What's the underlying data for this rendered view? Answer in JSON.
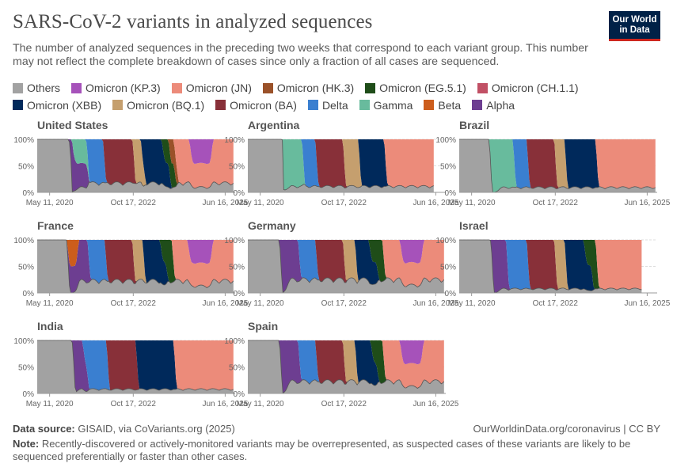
{
  "header": {
    "title": "SARS-CoV-2 variants in analyzed sequences",
    "subtitle": "The number of analyzed sequences in the preceding two weeks that correspond to each variant group. This number may not reflect the complete breakdown of cases since only a fraction of all cases are sequenced.",
    "logo_line1": "Our World",
    "logo_line2": "in Data"
  },
  "legend": [
    {
      "name": "Others",
      "color": "#a2a2a2"
    },
    {
      "name": "Omicron (KP.3)",
      "color": "#a652ba"
    },
    {
      "name": "Omicron (JN)",
      "color": "#ec8b7a"
    },
    {
      "name": "Omicron (HK.3)",
      "color": "#9a5129"
    },
    {
      "name": "Omicron (EG.5.1)",
      "color": "#1f4d19"
    },
    {
      "name": "Omicron (CH.1.1)",
      "color": "#c15065"
    },
    {
      "name": "Omicron (XBB)",
      "color": "#00295b"
    },
    {
      "name": "Omicron (BQ.1)",
      "color": "#c59f6e"
    },
    {
      "name": "Omicron (BA)",
      "color": "#883039"
    },
    {
      "name": "Delta",
      "color": "#3a7fd0"
    },
    {
      "name": "Gamma",
      "color": "#68bb9d"
    },
    {
      "name": "Beta",
      "color": "#cc5d1c"
    },
    {
      "name": "Alpha",
      "color": "#6d3e91"
    }
  ],
  "chart_data": {
    "type": "area",
    "stacked": "relative",
    "y_ticks": [
      "0%",
      "50%",
      "100%"
    ],
    "x_ticks": [
      "May 11, 2020",
      "Oct 17, 2022",
      "Jun 16, 2025"
    ],
    "x_range": [
      "2020-01-01",
      "2025-09-30"
    ],
    "series_order_bottom_to_top": [
      "Others",
      "Alpha",
      "Beta",
      "Gamma",
      "Delta",
      "Omicron (BA)",
      "Omicron (BQ.1)",
      "Omicron (XBB)",
      "Omicron (CH.1.1)",
      "Omicron (EG.5.1)",
      "Omicron (HK.3)",
      "Omicron (JN)",
      "Omicron (KP.3)"
    ],
    "panels": [
      {
        "country": "United States",
        "end": 2025.7,
        "phases": [
          [
            "Others",
            0,
            2020.35,
            2020.9
          ],
          [
            "Alpha",
            2020.9,
            2021.2,
            2021.4
          ],
          [
            "Gamma",
            2021.0,
            2021.2,
            2021.4
          ],
          [
            "Delta",
            2021.4,
            2021.55,
            2021.9
          ],
          [
            "Omicron (BA)",
            2021.9,
            2022.0,
            2022.75
          ],
          [
            "Omicron (BQ.1)",
            2022.75,
            2022.9,
            2023.05
          ],
          [
            "Omicron (XBB)",
            2023.0,
            2023.1,
            2023.8
          ],
          [
            "Omicron (EG.5.1)",
            2023.6,
            2023.75,
            2023.95
          ],
          [
            "Omicron (HK.3)",
            2023.8,
            2023.9,
            2024.0
          ],
          [
            "Omicron (JN)",
            2023.95,
            2024.05,
            2025.7
          ],
          [
            "Omicron (KP.3)",
            2024.4,
            2024.55,
            2025.0
          ]
        ],
        "others_after": 0.25
      },
      {
        "country": "Argentina",
        "end": 2025.4,
        "phases": [
          [
            "Others",
            0,
            2020.35,
            2020.9
          ],
          [
            "Gamma",
            2021.0,
            2021.2,
            2021.55
          ],
          [
            "Delta",
            2021.55,
            2021.7,
            2021.95
          ],
          [
            "Omicron (BA)",
            2021.95,
            2022.05,
            2022.75
          ],
          [
            "Omicron (BQ.1)",
            2022.75,
            2022.85,
            2023.2
          ],
          [
            "Omicron (XBB)",
            2023.2,
            2023.3,
            2023.95
          ],
          [
            "Omicron (JN)",
            2023.95,
            2024.05,
            2025.4
          ]
        ],
        "others_after": 0.15
      },
      {
        "country": "Brazil",
        "end": 2025.7,
        "phases": [
          [
            "Others",
            0,
            2020.35,
            2020.85
          ],
          [
            "Gamma",
            2020.85,
            2021.0,
            2021.55
          ],
          [
            "Delta",
            2021.55,
            2021.65,
            2021.95
          ],
          [
            "Omicron (BA)",
            2021.95,
            2022.05,
            2022.75
          ],
          [
            "Omicron (BQ.1)",
            2022.75,
            2022.85,
            2023.05
          ],
          [
            "Omicron (XBB)",
            2023.05,
            2023.15,
            2023.95
          ],
          [
            "Omicron (JN)",
            2023.95,
            2024.05,
            2025.7
          ]
        ],
        "others_after": 0.12
      },
      {
        "country": "France",
        "end": 2025.7,
        "phases": [
          [
            "Others",
            0,
            2020.45,
            2020.85
          ],
          [
            "Beta",
            2020.85,
            2021.0,
            2021.1
          ],
          [
            "Alpha",
            2020.85,
            2021.0,
            2021.45
          ],
          [
            "Delta",
            2021.45,
            2021.55,
            2021.95
          ],
          [
            "Omicron (BA)",
            2021.95,
            2022.05,
            2022.75
          ],
          [
            "Omicron (BQ.1)",
            2022.75,
            2022.85,
            2023.05
          ],
          [
            "Omicron (XBB)",
            2023.05,
            2023.15,
            2023.7
          ],
          [
            "Omicron (EG.5.1)",
            2023.55,
            2023.7,
            2023.9
          ],
          [
            "Omicron (JN)",
            2023.9,
            2024.0,
            2025.7
          ],
          [
            "Omicron (KP.3)",
            2024.35,
            2024.5,
            2025.0
          ]
        ],
        "others_after": 0.35
      },
      {
        "country": "Germany",
        "end": 2025.7,
        "phases": [
          [
            "Others",
            0,
            2020.5,
            2020.9
          ],
          [
            "Alpha",
            2020.9,
            2021.05,
            2021.45
          ],
          [
            "Delta",
            2021.45,
            2021.55,
            2021.95
          ],
          [
            "Omicron (BA)",
            2021.95,
            2022.05,
            2022.75
          ],
          [
            "Omicron (BQ.1)",
            2022.75,
            2022.85,
            2023.1
          ],
          [
            "Omicron (XBB)",
            2023.1,
            2023.2,
            2023.7
          ],
          [
            "Omicron (EG.5.1)",
            2023.5,
            2023.65,
            2023.9
          ],
          [
            "Omicron (JN)",
            2023.9,
            2024.0,
            2025.7
          ],
          [
            "Omicron (KP.3)",
            2024.4,
            2024.55,
            2025.0
          ]
        ],
        "others_after": 0.4
      },
      {
        "country": "Israel",
        "end": 2025.3,
        "phases": [
          [
            "Others",
            0,
            2020.55,
            2020.9
          ],
          [
            "Alpha",
            2020.9,
            2021.05,
            2021.35
          ],
          [
            "Delta",
            2021.35,
            2021.45,
            2021.95
          ],
          [
            "Omicron (BA)",
            2021.95,
            2022.05,
            2022.75
          ],
          [
            "Omicron (BQ.1)",
            2022.75,
            2022.85,
            2023.05
          ],
          [
            "Omicron (XBB)",
            2023.05,
            2023.15,
            2023.8
          ],
          [
            "Omicron (EG.5.1)",
            2023.6,
            2023.75,
            2023.95
          ],
          [
            "Omicron (JN)",
            2023.95,
            2024.05,
            2025.3
          ]
        ],
        "others_after": 0.1
      },
      {
        "country": "India",
        "end": 2025.7,
        "phases": [
          [
            "Others",
            0,
            2020.5,
            2021.0
          ],
          [
            "Alpha",
            2021.0,
            2021.15,
            2021.4
          ],
          [
            "Delta",
            2021.3,
            2021.45,
            2022.0
          ],
          [
            "Omicron (BA)",
            2022.0,
            2022.1,
            2022.85
          ],
          [
            "Omicron (XBB)",
            2022.85,
            2022.95,
            2023.95
          ],
          [
            "Omicron (JN)",
            2023.95,
            2024.05,
            2025.7
          ]
        ],
        "others_after": 0.1
      },
      {
        "country": "Spain",
        "end": 2025.7,
        "phases": [
          [
            "Others",
            0,
            2020.5,
            2020.9
          ],
          [
            "Alpha",
            2020.9,
            2021.05,
            2021.45
          ],
          [
            "Delta",
            2021.45,
            2021.55,
            2021.95
          ],
          [
            "Omicron (BA)",
            2021.95,
            2022.05,
            2022.75
          ],
          [
            "Omicron (BQ.1)",
            2022.75,
            2022.85,
            2023.1
          ],
          [
            "Omicron (XBB)",
            2023.1,
            2023.2,
            2023.7
          ],
          [
            "Omicron (EG.5.1)",
            2023.55,
            2023.7,
            2023.9
          ],
          [
            "Omicron (JN)",
            2023.9,
            2024.0,
            2025.7
          ],
          [
            "Omicron (KP.3)",
            2024.4,
            2024.55,
            2025.0
          ]
        ],
        "others_after": 0.35
      }
    ]
  },
  "footer": {
    "source_label": "Data source:",
    "source_text": "GISAID, via CoVariants.org (2025)",
    "url": "OurWorldinData.org/coronavirus | CC BY",
    "note_label": "Note:",
    "note_text": "Recently-discovered or actively-monitored variants may be overrepresented, as suspected cases of these variants are likely to be sequenced preferentially or faster than other cases."
  }
}
